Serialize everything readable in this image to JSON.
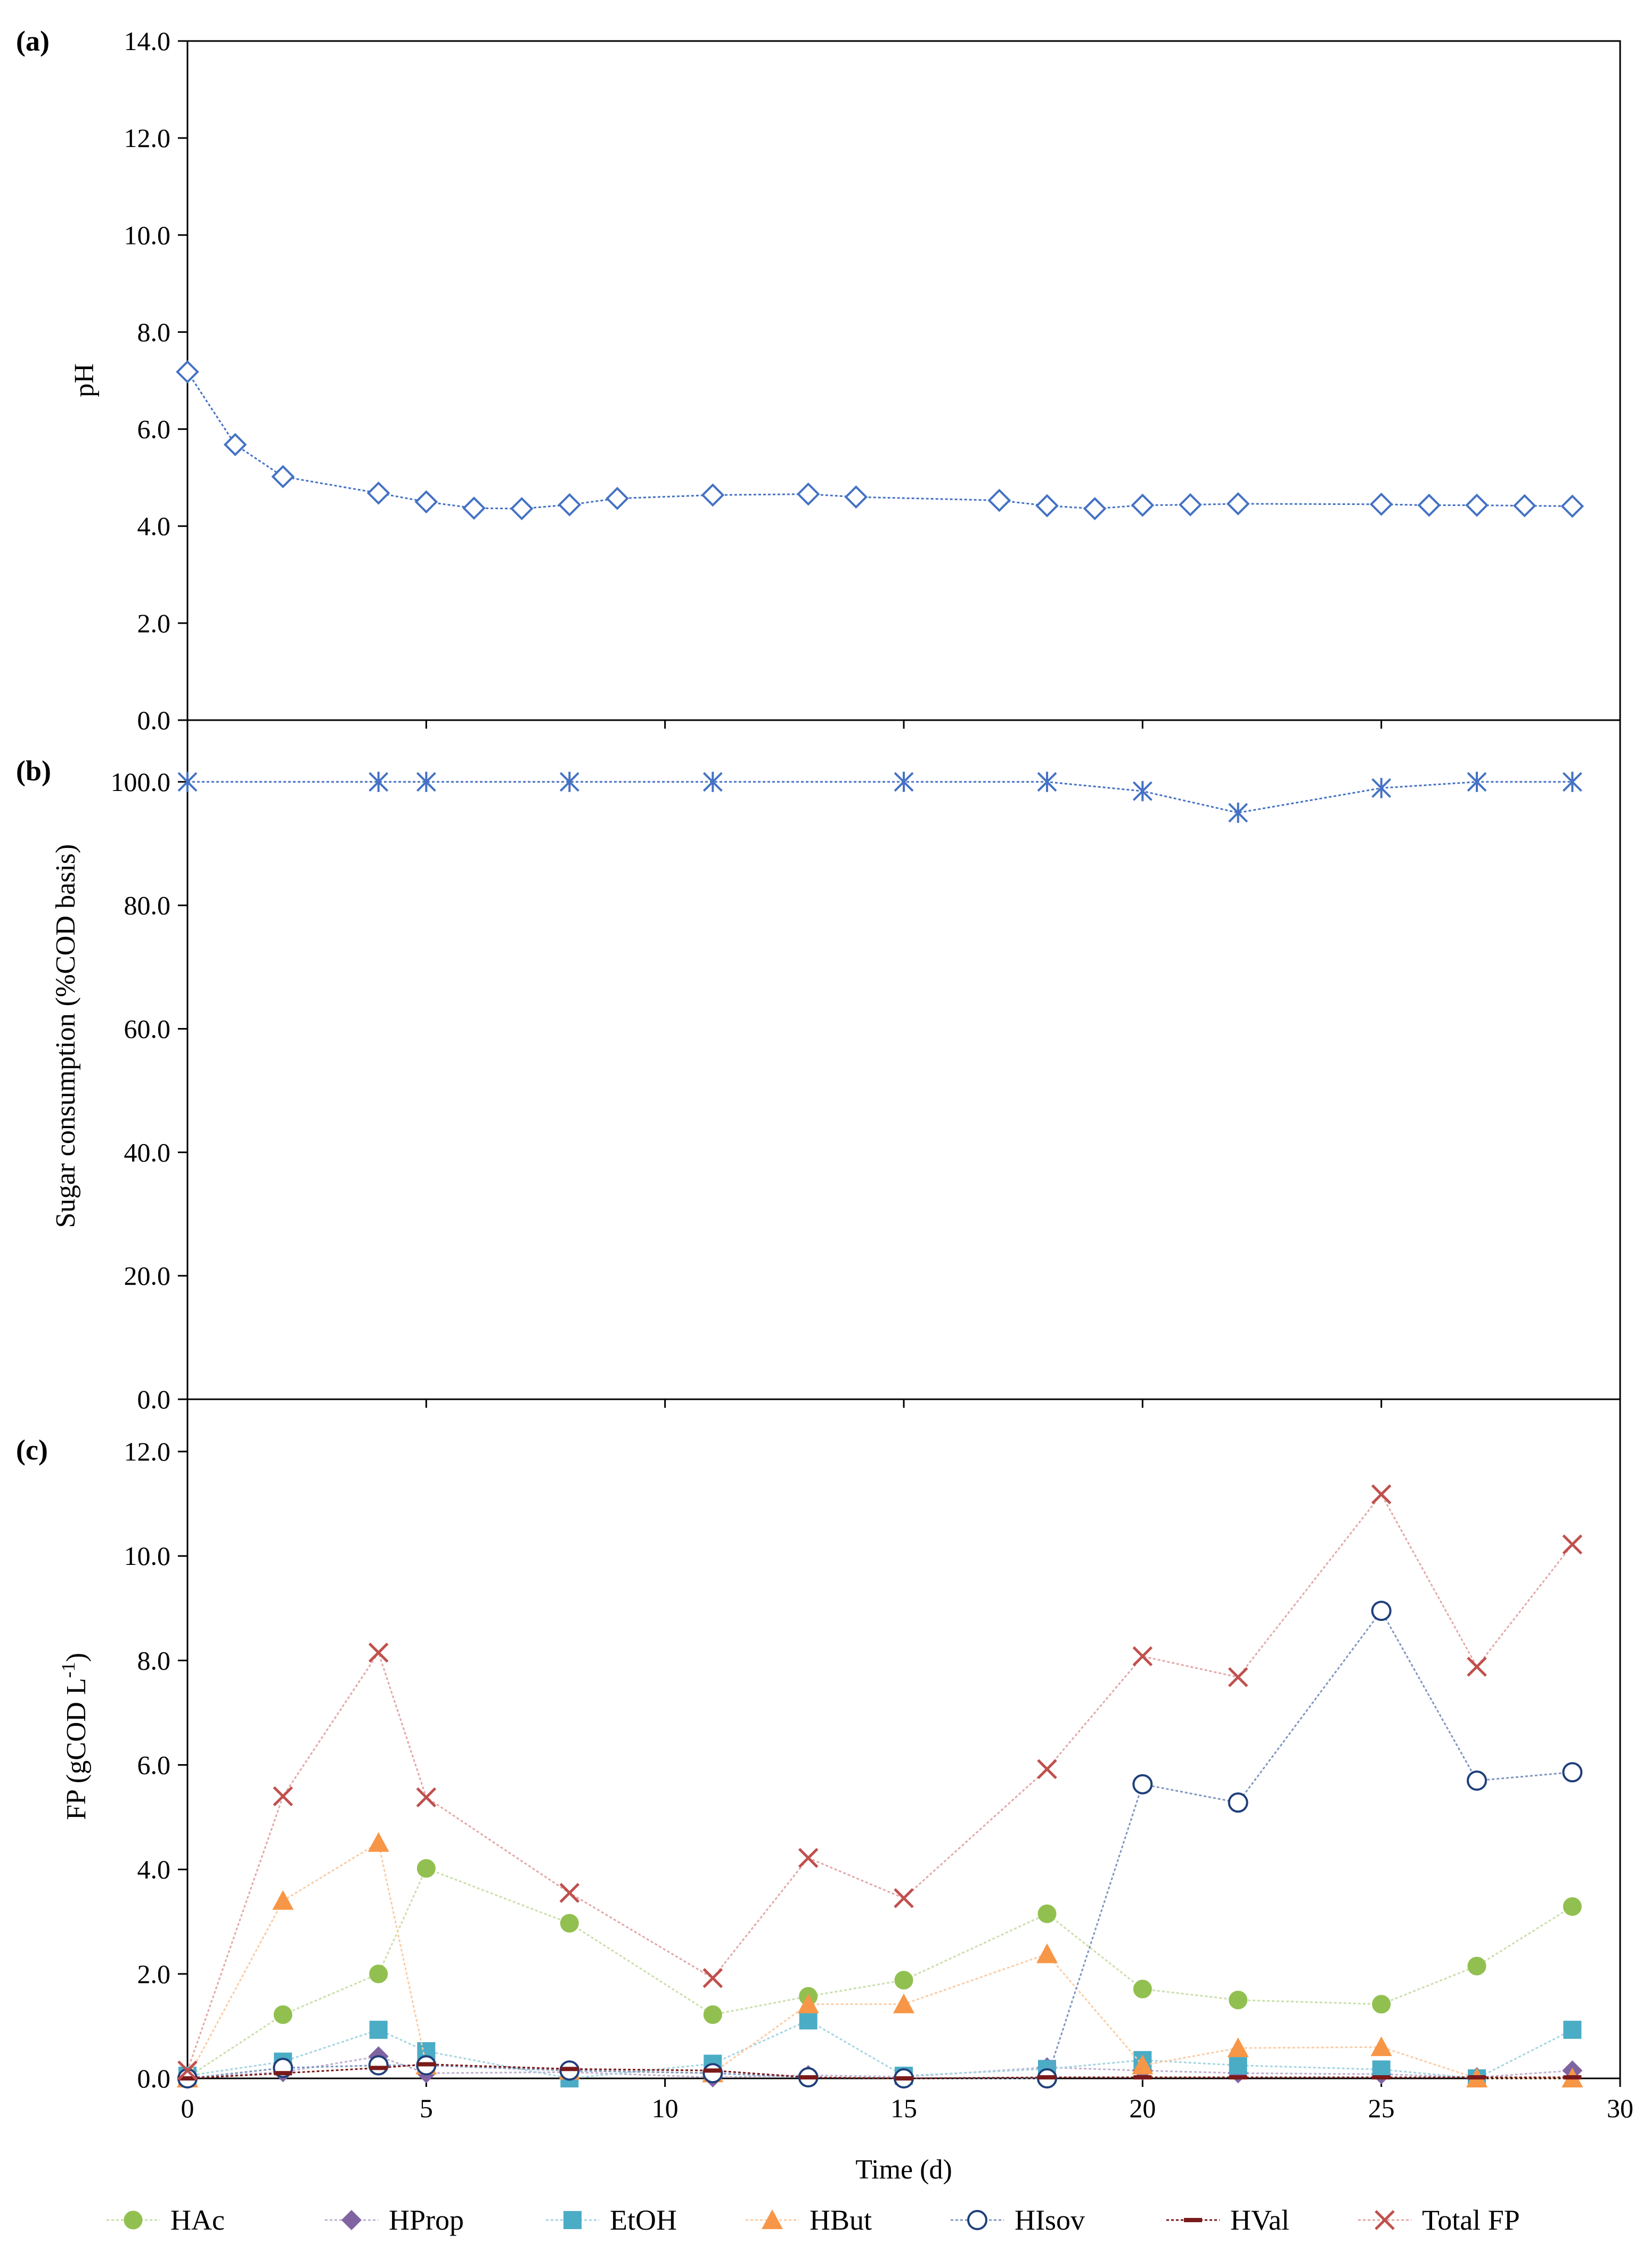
{
  "chart_data": [
    {
      "panel_label": "(a)",
      "type": "line",
      "ylabel": "pH",
      "xlabel": "",
      "ylim": [
        0,
        14
      ],
      "xlim": [
        0,
        30
      ],
      "yticks": [
        "0.0",
        "2.0",
        "4.0",
        "6.0",
        "8.0",
        "10.0",
        "12.0",
        "14.0"
      ],
      "grid": false,
      "series": [
        {
          "name": "pH",
          "color": "#4472c4",
          "marker": "diamond-open",
          "x": [
            0,
            1,
            2,
            4,
            5,
            6,
            7,
            8,
            9,
            11,
            13,
            14,
            17,
            18,
            19,
            20,
            21,
            22,
            25,
            26,
            27,
            28,
            29
          ],
          "y": [
            7.18,
            5.68,
            5.02,
            4.68,
            4.5,
            4.37,
            4.36,
            4.44,
            4.57,
            4.64,
            4.66,
            4.6,
            4.53,
            4.42,
            4.36,
            4.43,
            4.44,
            4.46,
            4.45,
            4.43,
            4.43,
            4.42,
            4.41
          ]
        }
      ]
    },
    {
      "panel_label": "(b)",
      "type": "line",
      "ylabel": "Sugar consumption (%COD basis)",
      "xlabel": "",
      "ylim": [
        0,
        110
      ],
      "xlim": [
        0,
        30
      ],
      "yticks": [
        "0.0",
        "20.0",
        "40.0",
        "60.0",
        "80.0",
        "100.0"
      ],
      "grid": false,
      "series": [
        {
          "name": "Sugar consumption",
          "color": "#4472c4",
          "marker": "asterisk",
          "x": [
            0,
            4,
            5,
            8,
            11,
            15,
            18,
            20,
            22,
            25,
            27,
            29
          ],
          "y": [
            100.0,
            100.0,
            100.0,
            100.0,
            100.0,
            100.0,
            100.0,
            98.5,
            95.0,
            99.0,
            100.0,
            100.0
          ]
        }
      ]
    },
    {
      "panel_label": "(c)",
      "type": "line",
      "ylabel": "FP (gCOD L",
      "ylabel_sup": "-1",
      "ylabel_end": ")",
      "xlabel": "Time (d)",
      "ylim": [
        0,
        13
      ],
      "xlim": [
        0,
        30
      ],
      "yticks": [
        "0.0",
        "2.0",
        "4.0",
        "6.0",
        "8.0",
        "10.0",
        "12.0"
      ],
      "xticks": [
        "0",
        "5",
        "10",
        "15",
        "20",
        "25",
        "30"
      ],
      "grid": false,
      "legend_position": "bottom",
      "series": [
        {
          "name": "HAc",
          "color": "#92c050",
          "line_color": "#c9dfa9",
          "marker": "circle",
          "x": [
            0,
            2,
            4,
            5,
            8,
            11,
            13,
            15,
            18,
            20,
            22,
            25,
            27,
            29
          ],
          "y": [
            0.02,
            1.22,
            2.0,
            4.02,
            2.97,
            1.22,
            1.57,
            1.88,
            3.15,
            1.71,
            1.5,
            1.42,
            2.15,
            3.29
          ]
        },
        {
          "name": "HProp",
          "color": "#8064a2",
          "line_color": "#bfb1d0",
          "marker": "diamond",
          "x": [
            0,
            2,
            4,
            5,
            8,
            11,
            13,
            15,
            18,
            20,
            22,
            25,
            27,
            29
          ],
          "y": [
            0.02,
            0.12,
            0.42,
            0.1,
            0.12,
            0.02,
            0.06,
            0.03,
            0.21,
            0.15,
            0.1,
            0.08,
            0.02,
            0.15
          ]
        },
        {
          "name": "EtOH",
          "color": "#4bacc6",
          "line_color": "#a5d5e2",
          "marker": "square",
          "x": [
            0,
            2,
            4,
            5,
            8,
            11,
            13,
            15,
            18,
            20,
            22,
            25,
            27,
            29
          ],
          "y": [
            0.05,
            0.32,
            0.93,
            0.52,
            0.0,
            0.28,
            1.11,
            0.05,
            0.18,
            0.35,
            0.25,
            0.17,
            0.0,
            0.93
          ]
        },
        {
          "name": "HBut",
          "color": "#f79646",
          "line_color": "#fbcba3",
          "marker": "triangle",
          "x": [
            0,
            2,
            4,
            5,
            8,
            11,
            13,
            15,
            18,
            20,
            22,
            25,
            27,
            29
          ],
          "y": [
            0.0,
            3.4,
            4.51,
            0.25,
            0.15,
            0.1,
            1.42,
            1.42,
            2.38,
            0.25,
            0.58,
            0.6,
            0.0,
            0.0
          ]
        },
        {
          "name": "HIsov",
          "color": "#1f3f7a",
          "line_color": "#7f96c0",
          "marker": "circle-open",
          "x": [
            0,
            2,
            4,
            5,
            8,
            11,
            13,
            15,
            18,
            20,
            22,
            25,
            27,
            29
          ],
          "y": [
            0.0,
            0.2,
            0.25,
            0.25,
            0.15,
            0.1,
            0.02,
            0.0,
            0.0,
            5.63,
            5.28,
            8.95,
            5.7,
            5.86
          ]
        },
        {
          "name": "HVal",
          "color": "#7a1a1a",
          "line_color": "#7a1a1a",
          "marker": "dash",
          "x": [
            0,
            2,
            4,
            5,
            8,
            11,
            13,
            15,
            18,
            20,
            22,
            25,
            27,
            29
          ],
          "y": [
            0.0,
            0.1,
            0.2,
            0.27,
            0.18,
            0.15,
            0.02,
            0.0,
            0.02,
            0.02,
            0.02,
            0.02,
            0.02,
            0.02
          ]
        },
        {
          "name": "Total FP",
          "color": "#c0504d",
          "line_color": "#e3a7a6",
          "marker": "x",
          "x": [
            0,
            2,
            4,
            5,
            8,
            11,
            13,
            15,
            18,
            20,
            22,
            25,
            27,
            29
          ],
          "y": [
            0.15,
            5.4,
            8.15,
            5.38,
            3.55,
            1.92,
            4.22,
            3.45,
            5.92,
            8.08,
            7.68,
            11.18,
            7.88,
            10.22
          ]
        }
      ]
    }
  ]
}
